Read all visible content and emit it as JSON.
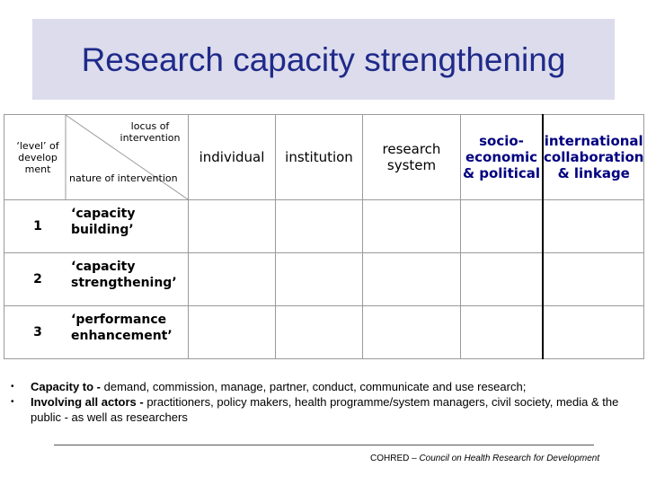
{
  "slide": {
    "title": "Research capacity strengthening"
  },
  "table": {
    "corner": {
      "level_label": "‘level’ of develop ment",
      "locus_label": "locus of intervention",
      "nature_label": "nature of intervention"
    },
    "columns": [
      "individual",
      "institution",
      "research system",
      "socio-economic & political",
      "international collaboration & linkage"
    ],
    "rows": [
      {
        "num": "1",
        "label": "‘capacity building’"
      },
      {
        "num": "2",
        "label": "‘capacity strengthening’"
      },
      {
        "num": "3",
        "label": "‘performance enhancement’"
      }
    ]
  },
  "bullets": [
    {
      "bold": "Capacity to - ",
      "text": "demand, commission, manage, partner, conduct, communicate and use research;"
    },
    {
      "bold": "Involving all actors - ",
      "text": "practitioners, policy makers, health programme/system managers, civil society, media & the public - as well as researchers"
    }
  ],
  "footer": {
    "org": "COHRED – ",
    "full_name": "Council on Health Research for Development"
  }
}
